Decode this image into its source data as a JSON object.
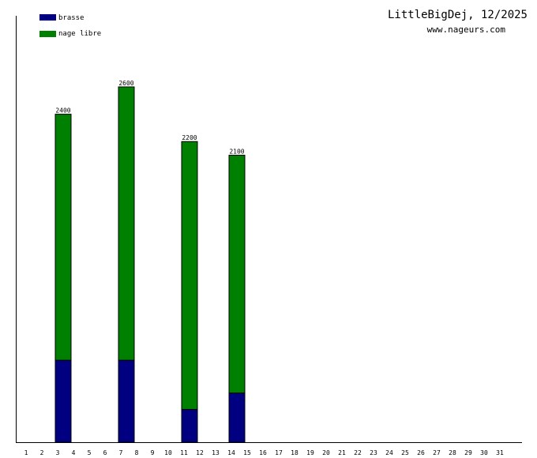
{
  "header": {
    "title": "LittleBigDej, 12/2025",
    "subtitle": "www.nageurs.com"
  },
  "chart_data": {
    "type": "bar",
    "stacked": true,
    "x": [
      1,
      2,
      3,
      4,
      5,
      6,
      7,
      8,
      9,
      10,
      11,
      12,
      13,
      14,
      15,
      16,
      17,
      18,
      19,
      20,
      21,
      22,
      23,
      24,
      25,
      26,
      27,
      28,
      29,
      30,
      31
    ],
    "x_tick_labels": [
      "1",
      "2",
      "3",
      "4",
      "5",
      "6",
      "7",
      "8",
      "9",
      "10",
      "11",
      "12",
      "13",
      "14",
      "15",
      "16",
      "17",
      "18",
      "19",
      "20",
      "21",
      "22",
      "23",
      "24",
      "25",
      "26",
      "27",
      "28",
      "29",
      "30",
      "31"
    ],
    "series": [
      {
        "name": "brasse",
        "color": "#000080",
        "values": [
          0,
          0,
          600,
          0,
          0,
          0,
          600,
          0,
          0,
          0,
          240,
          0,
          0,
          360,
          0,
          0,
          0,
          0,
          0,
          0,
          0,
          0,
          0,
          0,
          0,
          0,
          0,
          0,
          0,
          0,
          0
        ]
      },
      {
        "name": "nage libre",
        "color": "#008000",
        "values": [
          0,
          0,
          1800,
          0,
          0,
          0,
          2000,
          0,
          0,
          0,
          1960,
          0,
          0,
          1740,
          0,
          0,
          0,
          0,
          0,
          0,
          0,
          0,
          0,
          0,
          0,
          0,
          0,
          0,
          0,
          0,
          0
        ]
      }
    ],
    "totals": [
      {
        "x": 3,
        "label": "2400"
      },
      {
        "x": 7,
        "label": "2600"
      },
      {
        "x": 11,
        "label": "2200"
      },
      {
        "x": 14,
        "label": "2100"
      }
    ],
    "ylim": [
      0,
      3120
    ],
    "legend_position": "top-left",
    "grid": false
  }
}
